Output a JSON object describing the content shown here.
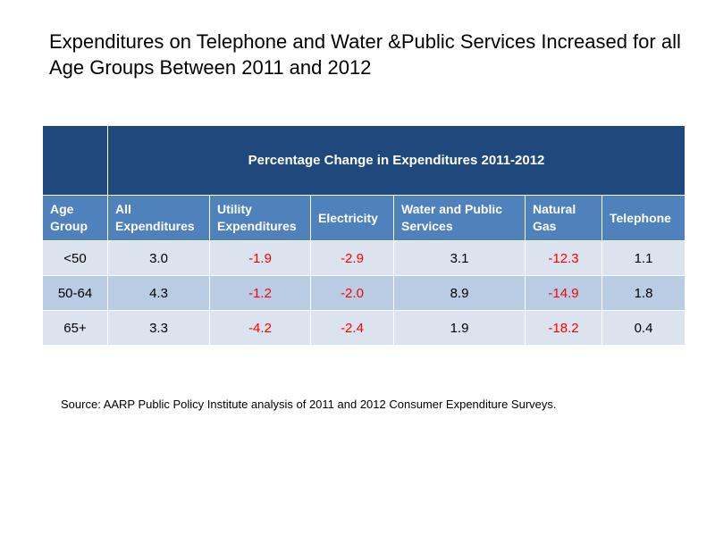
{
  "title": "Expenditures on Telephone and Water &Public Services Increased for all Age Groups Between 2011 and 2012",
  "table": {
    "banner": "Percentage Change in Expenditures 2011-2012",
    "headers": [
      "Age Group",
      "All Expenditures",
      "Utility Expenditures",
      "Electricity",
      "Water and Public Services",
      "Natural Gas",
      "Telephone"
    ],
    "rows": [
      {
        "group": "<50",
        "all": "3.0",
        "utility": "-1.9",
        "electricity": "-2.9",
        "water": "3.1",
        "gas": "-12.3",
        "telephone": "1.1"
      },
      {
        "group": "50-64",
        "all": "4.3",
        "utility": "-1.2",
        "electricity": "-2.0",
        "water": "8.9",
        "gas": "-14.9",
        "telephone": "1.8"
      },
      {
        "group": "65+",
        "all": "3.3",
        "utility": "-4.2",
        "electricity": "-2.4",
        "water": "1.9",
        "gas": "-18.2",
        "telephone": "0.4"
      }
    ]
  },
  "source": "Source:  AARP Public Policy Institute analysis of 2011 and 2012 Consumer Expenditure Surveys.",
  "colors": {
    "banner": "#1f497d",
    "header": "#4f81bd",
    "row_light": "#dbe3ef",
    "row_dark": "#b8cce4",
    "negative": "#ff0000"
  }
}
